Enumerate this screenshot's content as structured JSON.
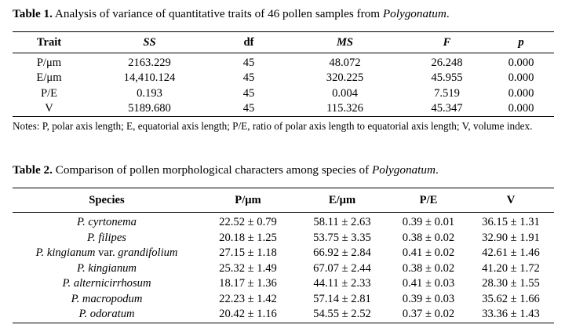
{
  "table1": {
    "caption_label": "Table 1.",
    "caption_text": " Analysis of variance of quantitative traits of 46 pollen samples from ",
    "caption_genus": "Polygonatum",
    "caption_end": ".",
    "headers": [
      "Trait",
      "SS",
      "df",
      "MS",
      "F",
      "p"
    ],
    "rows": [
      [
        "P/μm",
        "2163.229",
        "45",
        "48.072",
        "26.248",
        "0.000"
      ],
      [
        "E/μm",
        "14,410.124",
        "45",
        "320.225",
        "45.955",
        "0.000"
      ],
      [
        "P/E",
        "0.193",
        "45",
        "0.004",
        "7.519",
        "0.000"
      ],
      [
        "V",
        "5189.680",
        "45",
        "115.326",
        "45.347",
        "0.000"
      ]
    ],
    "notes": "Notes: P, polar axis length; E, equatorial axis length; P/E, ratio of polar axis length to equatorial axis length; V, volume index."
  },
  "table2": {
    "caption_label": "Table 2.",
    "caption_text": " Comparison of pollen morphological characters among species of ",
    "caption_genus": "Polygonatum",
    "caption_end": ".",
    "headers": [
      "Species",
      "P/μm",
      "E/μm",
      "P/E",
      "V"
    ],
    "rows": [
      {
        "species": "P. cyrtonema",
        "species_extra": "",
        "species_tail": "",
        "p": "22.52 ± 0.79",
        "e": "58.11 ± 2.63",
        "pe": "0.39 ± 0.01",
        "v": "36.15 ± 1.31"
      },
      {
        "species": "P. filipes",
        "species_extra": "",
        "species_tail": "",
        "p": "20.18 ± 1.25",
        "e": "53.75 ± 3.35",
        "pe": "0.38 ± 0.02",
        "v": "32.90 ± 1.91"
      },
      {
        "species": "P. kingianum",
        "species_extra": " var. ",
        "species_tail": "grandifolium",
        "p": "27.15 ± 1.18",
        "e": "66.92 ± 2.84",
        "pe": "0.41 ± 0.02",
        "v": "42.61 ± 1.46"
      },
      {
        "species": "P. kingianum",
        "species_extra": "",
        "species_tail": "",
        "p": "25.32 ± 1.49",
        "e": "67.07 ± 2.44",
        "pe": "0.38 ± 0.02",
        "v": "41.20 ± 1.72"
      },
      {
        "species": "P. alternicirrhosum",
        "species_extra": "",
        "species_tail": "",
        "p": "18.17 ± 1.36",
        "e": "44.11 ± 2.33",
        "pe": "0.41 ± 0.03",
        "v": "28.30 ± 1.55"
      },
      {
        "species": "P. macropodum",
        "species_extra": "",
        "species_tail": "",
        "p": "22.23 ± 1.42",
        "e": "57.14 ± 2.81",
        "pe": "0.39 ± 0.03",
        "v": "35.62 ± 1.66"
      },
      {
        "species": "P. odoratum",
        "species_extra": "",
        "species_tail": "",
        "p": "20.42 ± 1.16",
        "e": "54.55 ± 2.52",
        "pe": "0.37 ± 0.02",
        "v": "33.36 ± 1.43"
      }
    ]
  }
}
